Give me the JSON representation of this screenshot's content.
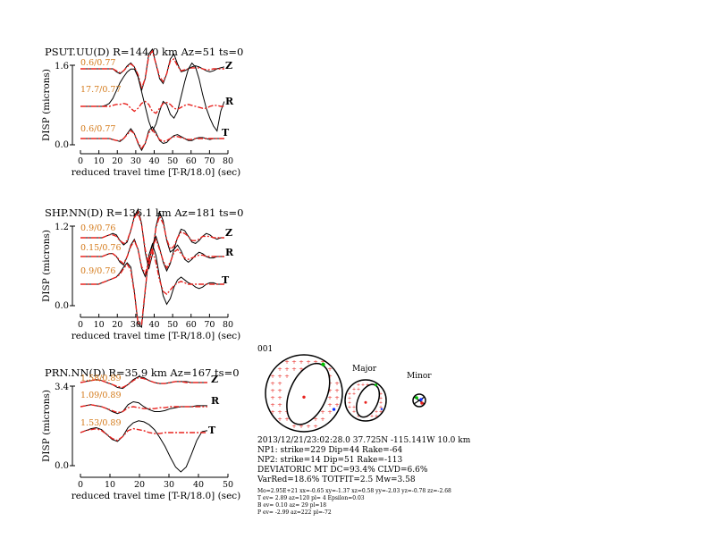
{
  "chart_data": [
    {
      "type": "line",
      "title": "PSUT.UU(D) R=144.0 km Az=51 ts=0",
      "ylabel": "DISP (microns)",
      "xlabel": "reduced travel time [T-R/18.0] (sec)",
      "ylim": [
        0.0,
        1.6
      ],
      "yticks": [
        "1.6",
        "0.0"
      ],
      "xlim": [
        0,
        80
      ],
      "xticks": [
        0,
        10,
        20,
        30,
        40,
        50,
        60,
        70,
        80
      ],
      "traces": [
        {
          "component": "Z",
          "fit": "0.6/0.77",
          "observed": [
            0,
            0,
            0,
            0,
            0,
            0,
            0,
            0,
            0,
            0,
            -0.03,
            -0.05,
            -0.02,
            0.03,
            0.06,
            0.02,
            -0.08,
            -0.22,
            -0.1,
            0.15,
            0.2,
            0.05,
            -0.1,
            -0.15,
            -0.05,
            0.1,
            0.15,
            0.05,
            -0.03,
            -0.02,
            0,
            0.02,
            0.03,
            0.02,
            0,
            -0.02,
            -0.03,
            -0.02,
            0,
            0.01,
            0.02
          ],
          "synthetic": [
            0,
            0,
            0,
            0,
            0,
            0,
            0,
            0,
            0,
            0,
            -0.02,
            -0.04,
            -0.02,
            0.02,
            0.05,
            0.02,
            -0.06,
            -0.2,
            -0.1,
            0.13,
            0.18,
            0.05,
            -0.08,
            -0.13,
            -0.05,
            0.08,
            0.1,
            0.03,
            -0.02,
            -0.01,
            0,
            0.01,
            0.01,
            0.01,
            0,
            -0.01,
            -0.01,
            0,
            0,
            0,
            0
          ]
        },
        {
          "component": "R",
          "fit": "17.7/0.77",
          "observed": [
            0,
            0,
            0,
            0,
            0,
            0,
            0,
            0.01,
            0.03,
            0.08,
            0.16,
            0.24,
            0.3,
            0.35,
            0.38,
            0.38,
            0.3,
            0.15,
            0,
            -0.15,
            -0.25,
            -0.18,
            -0.05,
            0.05,
            0.02,
            -0.08,
            -0.12,
            -0.05,
            0.1,
            0.25,
            0.38,
            0.44,
            0.4,
            0.28,
            0.12,
            -0.02,
            -0.12,
            -0.2,
            -0.25,
            -0.05,
            0.05
          ],
          "synthetic": [
            0,
            0,
            0,
            0,
            0,
            0,
            0,
            0,
            0,
            0.01,
            0.02,
            0.02,
            0.03,
            0.02,
            -0.02,
            -0.05,
            -0.02,
            0.03,
            0.05,
            0.02,
            -0.05,
            -0.07,
            -0.02,
            0.03,
            0.04,
            0.02,
            -0.02,
            -0.03,
            -0.01,
            0.01,
            0.02,
            0.01,
            0,
            -0.01,
            -0.02,
            -0.02,
            0,
            0.01,
            0.01,
            0,
            0
          ]
        },
        {
          "component": "T",
          "fit": "0.6/0.77",
          "observed": [
            0,
            0,
            0,
            0,
            0,
            0,
            0,
            0,
            0,
            -0.01,
            -0.02,
            -0.03,
            0,
            0.05,
            0.1,
            0.05,
            -0.05,
            -0.12,
            -0.05,
            0.08,
            0.12,
            0.06,
            -0.02,
            -0.05,
            -0.04,
            0,
            0.03,
            0.04,
            0.02,
            0,
            -0.02,
            -0.02,
            0,
            0.01,
            0.01,
            0,
            -0.01,
            0,
            0,
            0,
            0
          ],
          "synthetic": [
            0,
            0,
            0,
            0,
            0,
            0,
            0,
            0,
            0,
            -0.01,
            -0.02,
            -0.02,
            0,
            0.04,
            0.08,
            0.05,
            -0.04,
            -0.1,
            -0.05,
            0.06,
            0.09,
            0.04,
            -0.01,
            -0.03,
            -0.02,
            0,
            0.02,
            0.02,
            0.01,
            0,
            -0.01,
            -0.01,
            0,
            0,
            0,
            0,
            0,
            0,
            0,
            0,
            0
          ]
        }
      ]
    },
    {
      "type": "line",
      "title": "SHP.NN(D) R=136.1 km Az=181 ts=0",
      "ylabel": "DISP (microns)",
      "xlabel": "reduced travel time [T-R/18.0] (sec)",
      "ylim": [
        0.0,
        1.2
      ],
      "yticks": [
        "1.2",
        "0.0"
      ],
      "xlim": [
        0,
        80
      ],
      "xticks": [
        0,
        10,
        20,
        30,
        40,
        50,
        60,
        70,
        80
      ],
      "traces": [
        {
          "component": "Z",
          "fit": "0.9/0.76",
          "observed": [
            0,
            0,
            0,
            0,
            0,
            0,
            0,
            0.01,
            0.02,
            0.03,
            0.02,
            -0.02,
            -0.05,
            -0.03,
            0.05,
            0.15,
            0.2,
            0.1,
            -0.1,
            -0.22,
            -0.12,
            0.08,
            0.18,
            0.12,
            -0.02,
            -0.1,
            -0.08,
            0,
            0.06,
            0.05,
            0.01,
            -0.03,
            -0.04,
            -0.02,
            0.01,
            0.03,
            0.02,
            0,
            -0.01,
            0,
            0
          ],
          "synthetic": [
            0,
            0,
            0,
            0,
            0,
            0,
            0,
            0.01,
            0.02,
            0.02,
            0.01,
            -0.02,
            -0.04,
            -0.02,
            0.05,
            0.14,
            0.18,
            0.09,
            -0.08,
            -0.2,
            -0.11,
            0.07,
            0.15,
            0.1,
            -0.01,
            -0.08,
            -0.06,
            0,
            0.04,
            0.03,
            0.01,
            -0.02,
            -0.02,
            -0.01,
            0.01,
            0.01,
            0.01,
            0,
            0,
            0,
            0
          ]
        },
        {
          "component": "R",
          "fit": "0.15/0.76",
          "observed": [
            0,
            0,
            0,
            0,
            0,
            0,
            0,
            0.01,
            0.02,
            0.02,
            0,
            -0.04,
            -0.06,
            0,
            0.08,
            0.12,
            0.05,
            -0.08,
            -0.14,
            -0.05,
            0.08,
            0.14,
            0.06,
            -0.04,
            -0.1,
            -0.05,
            0.05,
            0.08,
            0.04,
            -0.02,
            -0.04,
            -0.02,
            0.01,
            0.03,
            0.02,
            0,
            -0.01,
            -0.01,
            0,
            0,
            0
          ],
          "synthetic": [
            0,
            0,
            0,
            0,
            0,
            0,
            0,
            0.01,
            0.02,
            0.02,
            0,
            -0.03,
            -0.05,
            0,
            0.07,
            0.11,
            0.05,
            -0.07,
            -0.12,
            -0.04,
            0.07,
            0.12,
            0.05,
            -0.03,
            -0.08,
            -0.04,
            0.03,
            0.05,
            0.02,
            -0.01,
            -0.02,
            -0.01,
            0,
            0.01,
            0.01,
            0,
            0,
            0,
            0,
            0,
            0
          ]
        },
        {
          "component": "T",
          "fit": "0.9/0.76",
          "observed": [
            0,
            0,
            0,
            0,
            0,
            0,
            0.01,
            0.02,
            0.03,
            0.04,
            0.05,
            0.08,
            0.12,
            0.15,
            0.12,
            -0.05,
            -0.28,
            -0.3,
            -0.05,
            0.2,
            0.28,
            0.2,
            0.05,
            -0.08,
            -0.14,
            -0.1,
            -0.02,
            0.03,
            0.05,
            0.03,
            0.01,
            0,
            -0.02,
            -0.03,
            -0.02,
            0,
            0.01,
            0.01,
            0,
            0,
            0
          ],
          "synthetic": [
            0,
            0,
            0,
            0,
            0,
            0,
            0.01,
            0.02,
            0.03,
            0.04,
            0.05,
            0.07,
            0.11,
            0.14,
            0.1,
            -0.06,
            -0.27,
            -0.28,
            -0.04,
            0.18,
            0.24,
            0.15,
            0.03,
            -0.05,
            -0.07,
            -0.04,
            -0.01,
            0.01,
            0.02,
            0.01,
            0,
            0,
            0,
            0,
            0,
            0,
            0,
            0,
            0,
            0,
            0
          ]
        }
      ]
    },
    {
      "type": "line",
      "title": "PRN.NN(D) R=35.9 km Az=167 ts=0",
      "ylabel": "DISP (microns)",
      "xlabel": "reduced travel time [T-R/18.0] (sec)",
      "ylim": [
        0.0,
        3.4
      ],
      "yticks": [
        "3.4",
        "0.0"
      ],
      "xlim": [
        0,
        50
      ],
      "xticks": [
        0,
        10,
        20,
        30,
        40,
        50
      ],
      "traces": [
        {
          "component": "Z",
          "fit": "1.58/0.89",
          "observed": [
            0,
            0.01,
            0.02,
            0.03,
            0.02,
            0,
            -0.02,
            -0.05,
            -0.06,
            -0.02,
            0.03,
            0.06,
            0.05,
            0.02,
            0,
            -0.01,
            -0.01,
            0,
            0.01,
            0.01,
            0.01,
            0,
            0,
            0,
            0
          ],
          "synthetic": [
            0,
            0.01,
            0.02,
            0.03,
            0.02,
            0,
            -0.02,
            -0.04,
            -0.05,
            -0.02,
            0.02,
            0.05,
            0.04,
            0.02,
            0,
            -0.01,
            -0.01,
            0,
            0.01,
            0.01,
            0,
            0,
            0,
            0,
            0
          ]
        },
        {
          "component": "R",
          "fit": "1.09/0.89",
          "observed": [
            0,
            0.01,
            0.02,
            0.01,
            0,
            -0.02,
            -0.05,
            -0.07,
            -0.05,
            0.02,
            0.05,
            0.04,
            0,
            -0.03,
            -0.05,
            -0.05,
            -0.04,
            -0.02,
            -0.01,
            0,
            0,
            0,
            0.01,
            0.01,
            0.01
          ],
          "synthetic": [
            0,
            0.01,
            0.02,
            0.01,
            0,
            -0.02,
            -0.04,
            -0.06,
            -0.05,
            -0.01,
            0,
            -0.01,
            -0.02,
            -0.02,
            -0.02,
            -0.01,
            -0.01,
            0,
            0,
            0,
            0,
            0,
            0,
            0,
            0
          ]
        },
        {
          "component": "T",
          "fit": "1.53/0.89",
          "observed": [
            0,
            0.02,
            0.04,
            0.05,
            0.03,
            -0.02,
            -0.07,
            -0.09,
            -0.04,
            0.05,
            0.1,
            0.12,
            0.11,
            0.08,
            0.03,
            -0.05,
            -0.14,
            -0.25,
            -0.35,
            -0.4,
            -0.35,
            -0.22,
            -0.08,
            0.01,
            0.02
          ],
          "synthetic": [
            0,
            0.02,
            0.03,
            0.04,
            0.02,
            -0.02,
            -0.06,
            -0.08,
            -0.04,
            0.02,
            0.04,
            0.03,
            0.02,
            0,
            -0.01,
            -0.01,
            0,
            0,
            0,
            0,
            0,
            0,
            0,
            0,
            0
          ]
        }
      ]
    }
  ],
  "mechanism": {
    "event_id": "001",
    "labels": {
      "major": "Major",
      "minor": "Minor"
    },
    "colors": {
      "observed": "#000000",
      "synthetic": "#e8231f",
      "pressure": "#e8231f",
      "t_axis": "#00c000",
      "b_axis": "#1030ff",
      "fit_text": "#d47a1a"
    },
    "info_lines": [
      "2013/12/21/23:02:28.0 37.725N -115.141W 10.0 km",
      "NP1: strike=229 Dip=44 Rake=-64",
      "NP2: strike=14 Dip=51 Rake=-113",
      "DEVIATORIC MT DC=93.4% CLVD=6.6%",
      "VarRed=18.6% TOTFIT=2.5 Mw=3.58"
    ],
    "small_lines": [
      "Mo=2.95E+21 xx=-0.65 xy=-1.37 xz=0.58 yy=-2.03 yz=-0.78 zz=-2.68",
      "T ev= 2.89 az=120 pl= 4 Epsilon=0.03",
      "B ev= 0.10 az= 29 pl=18",
      "P ev= -2.99 az=222 pl=-72"
    ]
  }
}
